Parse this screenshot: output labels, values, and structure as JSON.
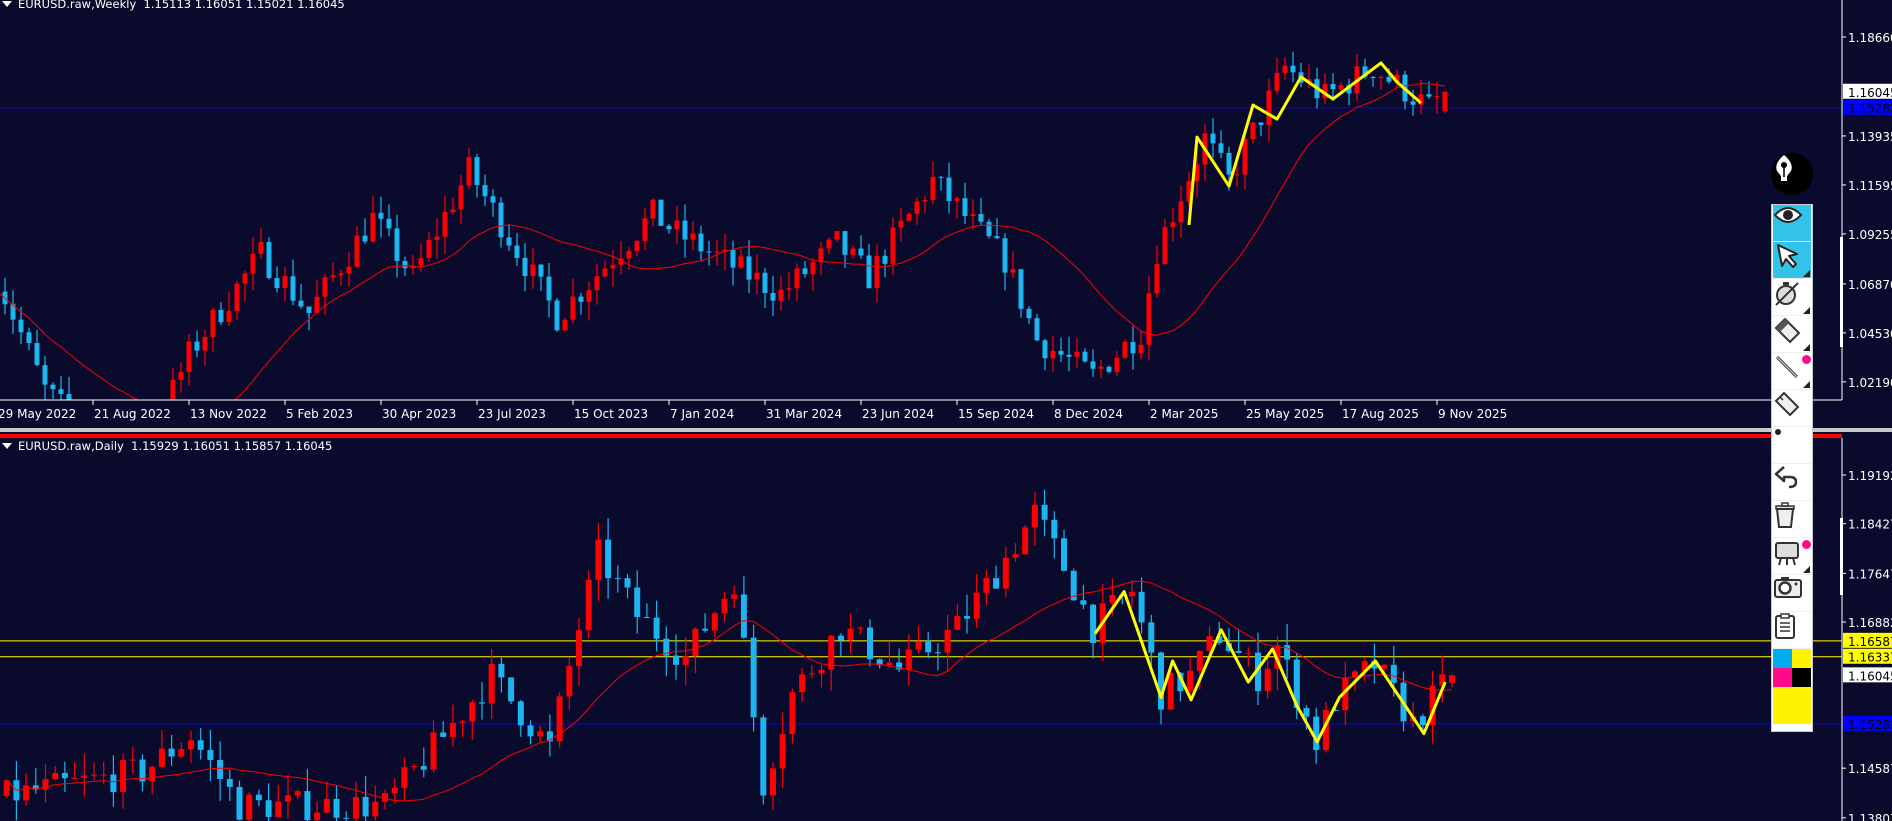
{
  "weekly": {
    "title": "EURUSD.raw,Weekly  1.15113 1.16051 1.15021 1.16045",
    "last_candle": {
      "open": 1.15113,
      "high": 1.16051,
      "low": 1.15021,
      "close": 1.16045
    },
    "price_labels": [
      "1.18660",
      "1.13935",
      "1.11595",
      "1.09255",
      "1.06870",
      "1.04530",
      "1.02190"
    ],
    "price_values": [
      1.1866,
      1.13935,
      1.11595,
      1.09255,
      1.0687,
      1.0453,
      1.0219
    ],
    "current_price_label": "1.16045",
    "hline_label": "1.15282",
    "hline_price": 1.15282,
    "date_labels": [
      "29 May 2022",
      "21 Aug 2022",
      "13 Nov 2022",
      "5 Feb 2023",
      "30 Apr 2023",
      "23 Jul 2023",
      "15 Oct 2023",
      "7 Jan 2024",
      "31 Mar 2024",
      "23 Jun 2024",
      "15 Sep 2024",
      "8 Dec 2024",
      "2 Mar 2025",
      "25 May 2025",
      "17 Aug 2025",
      "9 Nov 2025"
    ],
    "close_keypoints": [
      [
        "2022-05-29",
        1.072
      ],
      [
        "2022-07-10",
        1.018
      ],
      [
        "2022-09-25",
        0.975
      ],
      [
        "2022-11-13",
        1.035
      ],
      [
        "2023-01-15",
        1.083
      ],
      [
        "2023-02-26",
        1.055
      ],
      [
        "2023-04-23",
        1.1
      ],
      [
        "2023-05-28",
        1.072
      ],
      [
        "2023-07-16",
        1.123
      ],
      [
        "2023-10-01",
        1.053
      ],
      [
        "2023-12-24",
        1.102
      ],
      [
        "2024-01-14",
        1.093
      ],
      [
        "2024-04-14",
        1.064
      ],
      [
        "2024-06-02",
        1.088
      ],
      [
        "2024-06-30",
        1.072
      ],
      [
        "2024-08-25",
        1.118
      ],
      [
        "2024-10-27",
        1.08
      ],
      [
        "2024-11-24",
        1.042
      ],
      [
        "2025-01-12",
        1.025
      ],
      [
        "2025-02-23",
        1.046
      ],
      [
        "2025-03-09",
        1.085
      ],
      [
        "2025-04-20",
        1.138
      ],
      [
        "2025-05-11",
        1.118
      ],
      [
        "2025-06-29",
        1.172
      ],
      [
        "2025-08-03",
        1.158
      ],
      [
        "2025-09-14",
        1.172
      ],
      [
        "2025-11-02",
        1.153
      ],
      [
        "2025-11-16",
        1.16045
      ]
    ],
    "zigzag": [
      [
        "2025-04-06",
        1.0968
      ],
      [
        "2025-04-13",
        1.1388
      ],
      [
        "2025-05-11",
        1.1154
      ],
      [
        "2025-06-01",
        1.1541
      ],
      [
        "2025-06-22",
        1.1474
      ],
      [
        "2025-07-13",
        1.1675
      ],
      [
        "2025-08-10",
        1.157
      ],
      [
        "2025-09-21",
        1.1742
      ],
      [
        "2025-10-05",
        1.1651
      ],
      [
        "2025-10-26",
        1.1551
      ]
    ]
  },
  "daily": {
    "title": "EURUSD.raw,Daily  1.15929 1.16051 1.15857 1.16045",
    "last_candle": {
      "open": 1.15929,
      "high": 1.16051,
      "low": 1.15857,
      "close": 1.16045
    },
    "price_labels": [
      "1.19192",
      "1.18427",
      "1.17647",
      "1.16882",
      "1.14587",
      "1.13807"
    ],
    "price_values": [
      1.19192,
      1.18427,
      1.17647,
      1.16882,
      1.14587,
      1.13807
    ],
    "current_price_label": "1.16045",
    "hlines": [
      {
        "label": "1.16587",
        "price": 1.16587,
        "color": "#ffff00"
      },
      {
        "label": "1.16337",
        "price": 1.16337,
        "color": "#ffff00"
      },
      {
        "label": "1.15282",
        "price": 1.15282,
        "color": "#0000ff"
      }
    ],
    "bar_count": 150,
    "close_keypoints": [
      [
        0,
        1.1415
      ],
      [
        14,
        1.1453
      ],
      [
        19,
        1.1509
      ],
      [
        24,
        1.14
      ],
      [
        39,
        1.14
      ],
      [
        44,
        1.149
      ],
      [
        50,
        1.1603
      ],
      [
        56,
        1.149
      ],
      [
        59,
        1.168
      ],
      [
        61,
        1.1794
      ],
      [
        65,
        1.1699
      ],
      [
        70,
        1.1632
      ],
      [
        75,
        1.1756
      ],
      [
        78,
        1.1434
      ],
      [
        81,
        1.1575
      ],
      [
        86,
        1.168
      ],
      [
        92,
        1.1613
      ],
      [
        98,
        1.168
      ],
      [
        102,
        1.1765
      ],
      [
        106,
        1.1859
      ],
      [
        109,
        1.1775
      ],
      [
        112,
        1.168
      ],
      [
        116,
        1.1737
      ],
      [
        119,
        1.1575
      ],
      [
        122,
        1.1603
      ],
      [
        125,
        1.167
      ],
      [
        129,
        1.1603
      ],
      [
        131,
        1.1651
      ],
      [
        135,
        1.15
      ],
      [
        137,
        1.1566
      ],
      [
        141,
        1.1622
      ],
      [
        145,
        1.1528
      ],
      [
        149,
        1.16045
      ]
    ],
    "zigzag": [
      [
        112.2,
        1.167
      ],
      [
        115.2,
        1.1736
      ],
      [
        119.0,
        1.157
      ],
      [
        120.2,
        1.1627
      ],
      [
        122.1,
        1.1566
      ],
      [
        125.2,
        1.1676
      ],
      [
        128.0,
        1.1594
      ],
      [
        130.5,
        1.1646
      ],
      [
        133.0,
        1.1557
      ],
      [
        135.1,
        1.15
      ],
      [
        137.4,
        1.157
      ],
      [
        141.1,
        1.1627
      ],
      [
        143.6,
        1.157
      ],
      [
        146.1,
        1.1513
      ],
      [
        148.3,
        1.1594
      ]
    ]
  },
  "colors": {
    "background": "#0a0a2c",
    "bull_candle": "#ff0000",
    "bear_candle": "#1eb4f0",
    "moving_average": "#ff0000",
    "zigzag": "#ffff00",
    "grid_axis": "#ffffff"
  },
  "toolbar": {
    "items": [
      {
        "icon": "fountain-pen-icon"
      },
      {
        "icon": "eye-icon",
        "active": true
      },
      {
        "icon": "cursor-arrow-icon",
        "active": true
      },
      {
        "icon": "stopwatch-off-icon"
      },
      {
        "icon": "eraser-icon"
      },
      {
        "icon": "line-tool-icon"
      },
      {
        "icon": "ruler-icon"
      },
      {
        "icon": "dot-icon"
      },
      {
        "icon": "undo-icon"
      },
      {
        "icon": "trash-icon"
      },
      {
        "icon": "easel-icon"
      },
      {
        "icon": "camera-icon"
      },
      {
        "icon": "clipboard-icon"
      }
    ],
    "palette": [
      "#00aeef",
      "#fff200",
      "#ff0a8a",
      "#000000"
    ],
    "selected_color": "#fff200"
  }
}
